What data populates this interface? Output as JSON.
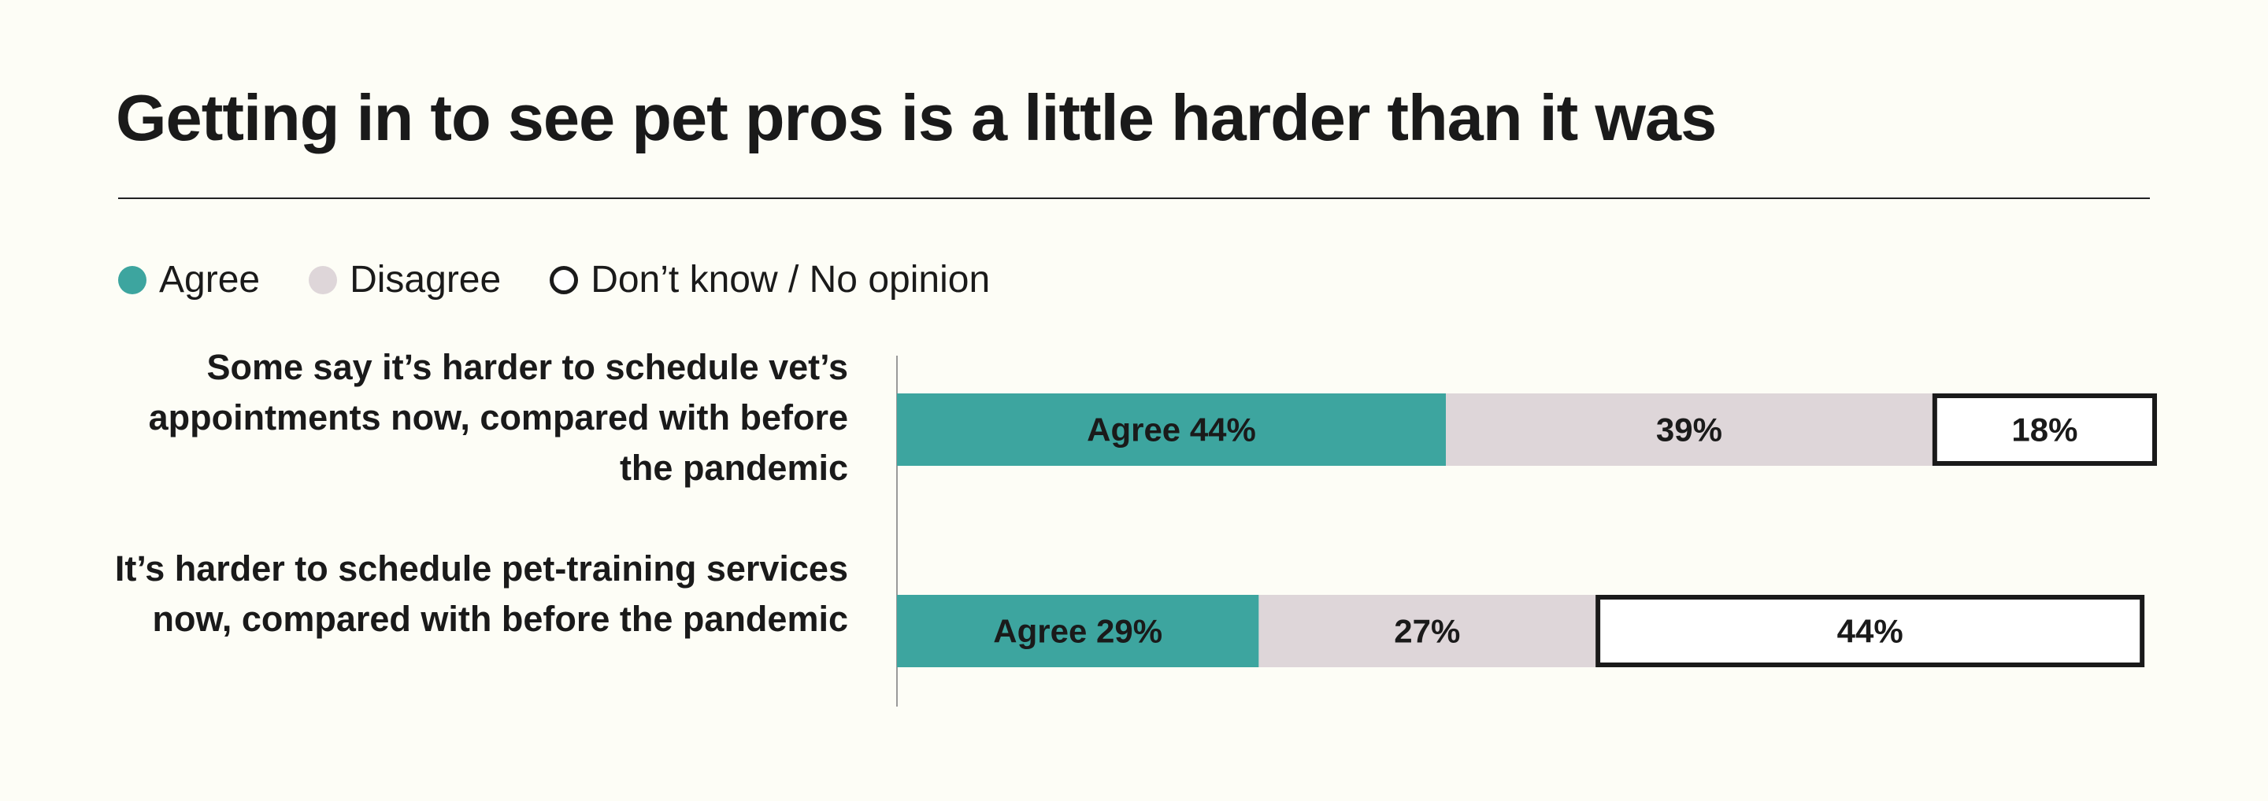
{
  "chart_data": {
    "type": "bar",
    "orientation": "horizontal",
    "stacked": true,
    "title": "Getting in to see pet pros is a little harder than it was",
    "xlabel": "",
    "ylabel": "",
    "xlim": [
      0,
      101
    ],
    "legend_position": "top-left",
    "grid": false,
    "categories": [
      "Some say it’s harder to schedule vet’s appointments now, compared with before the pandemic",
      "It’s harder to schedule pet-training services now, compared with before the pandemic"
    ],
    "series": [
      {
        "name": "Agree",
        "color": "#3da59f",
        "values": [
          44,
          29
        ],
        "labels": [
          "Agree 44%",
          "Agree 29%"
        ]
      },
      {
        "name": "Disagree",
        "color": "#ded6d9",
        "values": [
          39,
          27
        ],
        "labels": [
          "39%",
          "27%"
        ]
      },
      {
        "name": "Don’t know / No opinion",
        "color": "#ffffff",
        "values": [
          18,
          44
        ],
        "labels": [
          "18%",
          "44%"
        ]
      }
    ]
  }
}
